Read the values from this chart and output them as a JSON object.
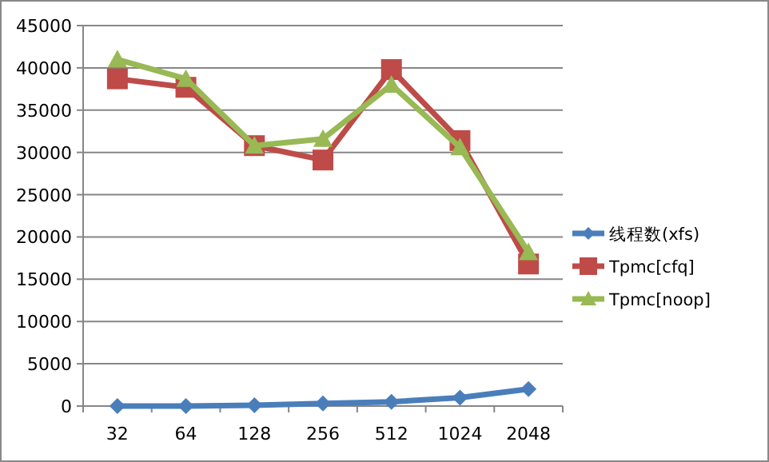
{
  "chart_data": {
    "type": "line",
    "categories": [
      "32",
      "64",
      "128",
      "256",
      "512",
      "1024",
      "2048"
    ],
    "series": [
      {
        "name": "线程数(xfs)",
        "color": "#4a7ebb",
        "marker": "diamond",
        "values": [
          0,
          0,
          100,
          300,
          500,
          1000,
          2000
        ]
      },
      {
        "name": "Tpmc[cfq]",
        "color": "#be4b48",
        "marker": "square",
        "values": [
          38700,
          37700,
          30800,
          29100,
          39800,
          31400,
          16800
        ]
      },
      {
        "name": "Tpmc[noop]",
        "color": "#98b954",
        "marker": "triangle",
        "values": [
          41000,
          38700,
          30800,
          31600,
          38000,
          30600,
          18200
        ]
      }
    ],
    "ylim": [
      0,
      45000
    ],
    "yticks": [
      0,
      5000,
      10000,
      15000,
      20000,
      25000,
      30000,
      35000,
      40000,
      45000
    ],
    "grid": "y",
    "legend": "right"
  }
}
